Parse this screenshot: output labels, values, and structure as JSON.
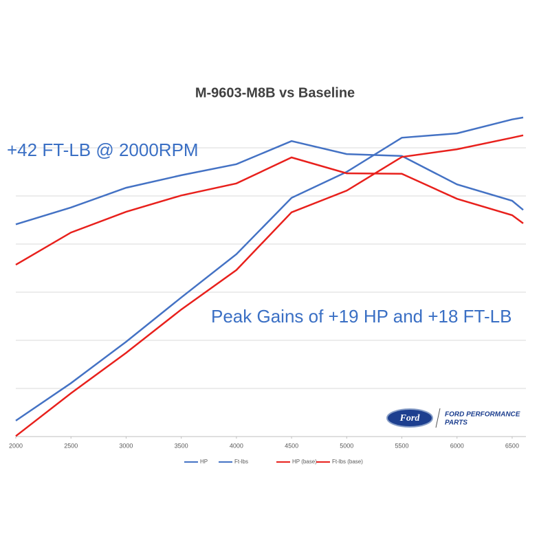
{
  "chart_data": {
    "type": "line",
    "title": "M-9603-M8B vs Baseline",
    "x": [
      2000,
      2500,
      3000,
      3500,
      4000,
      4500,
      5000,
      5500,
      6000,
      6500,
      6600
    ],
    "xlim": [
      2000,
      6625
    ],
    "xticks": [
      2000,
      2500,
      3000,
      3500,
      4000,
      4500,
      5000,
      5500,
      6000,
      6500
    ],
    "ylim": [
      0,
      6.8
    ],
    "yticks": [
      0,
      1,
      2,
      3,
      4,
      5,
      6
    ],
    "grid": true,
    "legend": "bottom",
    "series": [
      {
        "name": "HP",
        "color": "#4472c4",
        "values": [
          0.33,
          1.11,
          1.97,
          2.89,
          3.79,
          4.96,
          5.5,
          6.21,
          6.3,
          6.59,
          6.63
        ]
      },
      {
        "name": "Ft-lbs",
        "color": "#4472c4",
        "values": [
          4.41,
          4.76,
          5.17,
          5.43,
          5.66,
          6.14,
          5.87,
          5.83,
          5.24,
          4.9,
          4.71
        ]
      },
      {
        "name": "HP (base)",
        "color": "#e8201c",
        "values": [
          0.01,
          0.9,
          1.74,
          2.64,
          3.46,
          4.66,
          5.11,
          5.81,
          5.97,
          6.21,
          6.26
        ]
      },
      {
        "name": "Ft-lbs (base)",
        "color": "#e8201c",
        "values": [
          3.57,
          4.24,
          4.67,
          5.01,
          5.26,
          5.8,
          5.47,
          5.46,
          4.94,
          4.6,
          4.43
        ]
      }
    ],
    "annotations": [
      {
        "text": "+42 FT-LB @ 2000RPM"
      },
      {
        "text": "Peak Gains of +19 HP and +18 FT-LB"
      }
    ]
  },
  "logo": {
    "oval": "Ford",
    "line1": "FORD PERFORMANCE",
    "line2": "PARTS"
  }
}
